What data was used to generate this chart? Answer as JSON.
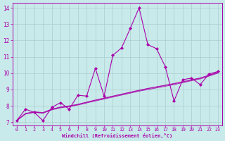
{
  "background_color": "#c8eaea",
  "line_color": "#aa00aa",
  "grid_color": "#aacccc",
  "xlim": [
    -0.5,
    23.5
  ],
  "ylim": [
    6.8,
    14.3
  ],
  "xticks": [
    0,
    1,
    2,
    3,
    4,
    5,
    6,
    7,
    8,
    9,
    10,
    11,
    12,
    13,
    14,
    15,
    16,
    17,
    18,
    19,
    20,
    21,
    22,
    23
  ],
  "yticks": [
    7,
    8,
    9,
    10,
    11,
    12,
    13,
    14
  ],
  "xlabel": "Windchill (Refroidissement éolien,°C)",
  "series": [
    [
      0,
      7.1
    ],
    [
      1,
      7.8
    ],
    [
      2,
      7.6
    ],
    [
      3,
      7.1
    ],
    [
      4,
      7.9
    ],
    [
      5,
      8.2
    ],
    [
      6,
      7.8
    ],
    [
      7,
      8.65
    ],
    [
      8,
      8.6
    ],
    [
      9,
      10.3
    ],
    [
      10,
      8.6
    ],
    [
      11,
      11.1
    ],
    [
      12,
      11.55
    ],
    [
      13,
      12.75
    ],
    [
      14,
      14.0
    ],
    [
      15,
      11.75
    ],
    [
      16,
      11.5
    ],
    [
      17,
      10.4
    ],
    [
      18,
      8.3
    ],
    [
      19,
      9.6
    ],
    [
      20,
      9.7
    ],
    [
      21,
      9.3
    ],
    [
      22,
      9.95
    ],
    [
      23,
      10.1
    ]
  ],
  "smooth_lines": [
    [
      [
        0,
        7.1
      ],
      [
        1,
        7.5
      ],
      [
        2,
        7.6
      ],
      [
        3,
        7.55
      ],
      [
        4,
        7.75
      ],
      [
        5,
        7.88
      ],
      [
        6,
        7.95
      ],
      [
        7,
        8.05
      ],
      [
        8,
        8.18
      ],
      [
        9,
        8.3
      ],
      [
        10,
        8.42
      ],
      [
        11,
        8.54
      ],
      [
        12,
        8.66
      ],
      [
        13,
        8.78
      ],
      [
        14,
        8.9
      ],
      [
        15,
        9.0
      ],
      [
        16,
        9.1
      ],
      [
        17,
        9.2
      ],
      [
        18,
        9.3
      ],
      [
        19,
        9.42
      ],
      [
        20,
        9.54
      ],
      [
        21,
        9.65
      ],
      [
        22,
        9.82
      ],
      [
        23,
        10.0
      ]
    ],
    [
      [
        0,
        7.1
      ],
      [
        1,
        7.52
      ],
      [
        2,
        7.62
      ],
      [
        3,
        7.57
      ],
      [
        4,
        7.78
      ],
      [
        5,
        7.91
      ],
      [
        6,
        7.98
      ],
      [
        7,
        8.08
      ],
      [
        8,
        8.21
      ],
      [
        9,
        8.34
      ],
      [
        10,
        8.46
      ],
      [
        11,
        8.58
      ],
      [
        12,
        8.7
      ],
      [
        13,
        8.82
      ],
      [
        14,
        8.94
      ],
      [
        15,
        9.05
      ],
      [
        16,
        9.15
      ],
      [
        17,
        9.25
      ],
      [
        18,
        9.35
      ],
      [
        19,
        9.46
      ],
      [
        20,
        9.58
      ],
      [
        21,
        9.69
      ],
      [
        22,
        9.86
      ],
      [
        23,
        10.04
      ]
    ],
    [
      [
        0,
        7.1
      ],
      [
        1,
        7.54
      ],
      [
        2,
        7.64
      ],
      [
        3,
        7.59
      ],
      [
        4,
        7.8
      ],
      [
        5,
        7.93
      ],
      [
        6,
        8.0
      ],
      [
        7,
        8.1
      ],
      [
        8,
        8.23
      ],
      [
        9,
        8.36
      ],
      [
        10,
        8.48
      ],
      [
        11,
        8.6
      ],
      [
        12,
        8.72
      ],
      [
        13,
        8.84
      ],
      [
        14,
        8.96
      ],
      [
        15,
        9.07
      ],
      [
        16,
        9.17
      ],
      [
        17,
        9.27
      ],
      [
        18,
        9.37
      ],
      [
        19,
        9.48
      ],
      [
        20,
        9.6
      ],
      [
        21,
        9.71
      ],
      [
        22,
        9.88
      ],
      [
        23,
        10.06
      ]
    ]
  ]
}
